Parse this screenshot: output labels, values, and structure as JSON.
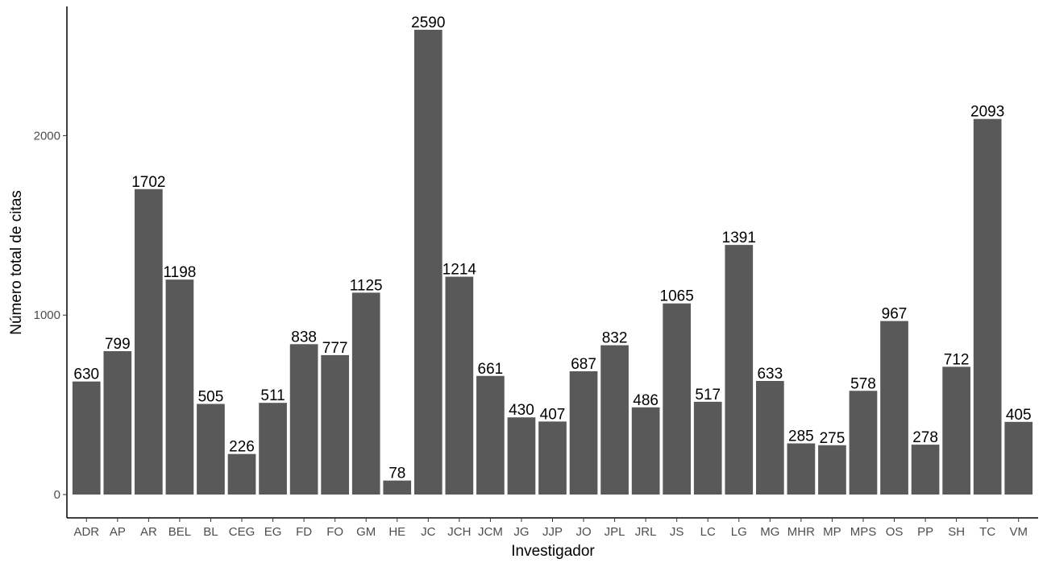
{
  "chart_data": {
    "type": "bar",
    "title": "",
    "xlabel": "Investigador",
    "ylabel": "Número total de citas",
    "categories": [
      "ADR",
      "AP",
      "AR",
      "BEL",
      "BL",
      "CEG",
      "EG",
      "FD",
      "FO",
      "GM",
      "HE",
      "JC",
      "JCH",
      "JCM",
      "JG",
      "JJP",
      "JO",
      "JPL",
      "JRL",
      "JS",
      "LC",
      "LG",
      "MG",
      "MHR",
      "MP",
      "MPS",
      "OS",
      "PP",
      "SH",
      "TC",
      "VM"
    ],
    "values": [
      630,
      799,
      1702,
      1198,
      505,
      226,
      511,
      838,
      777,
      1125,
      78,
      2590,
      1214,
      661,
      430,
      407,
      687,
      832,
      486,
      1065,
      517,
      1391,
      633,
      285,
      275,
      578,
      967,
      278,
      712,
      2093,
      405
    ],
    "yticks": [
      0,
      1000,
      2000
    ],
    "ylim": [
      -130,
      2720
    ],
    "grid": false,
    "legend": "none",
    "colors": {
      "bar": "#595959",
      "axis": "#000000",
      "tick_text": "#4d4d4d",
      "label_text": "#000000"
    }
  }
}
